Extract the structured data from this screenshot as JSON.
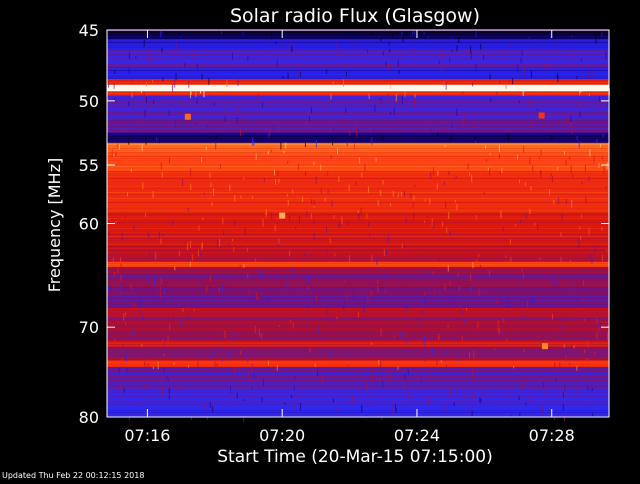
{
  "colors": {
    "background": "#000000",
    "foreground": "#ffffff",
    "colormap": [
      "#000000",
      "#1a0090",
      "#2a2cff",
      "#7a1070",
      "#d01010",
      "#ff3a10",
      "#ff8a2a",
      "#ffe0a0",
      "#ffffff"
    ]
  },
  "footer": {
    "updated": "Updated Thu Feb 22 00:12:15 2018"
  },
  "chart_data": {
    "type": "heatmap",
    "title": "Solar radio Flux (Glasgow)",
    "xlabel": "Start Time (20-Mar-15 07:15:00)",
    "ylabel": "Frequency [MHz]",
    "x_ticks": [
      {
        "label": "07:16",
        "minutes": 1
      },
      {
        "label": "07:20",
        "minutes": 5
      },
      {
        "label": "07:24",
        "minutes": 9
      },
      {
        "label": "07:28",
        "minutes": 13
      }
    ],
    "xlim_minutes": [
      -0.2,
      14.7
    ],
    "y_scale": "log",
    "ylim": [
      45,
      80
    ],
    "y_ticks": [
      45,
      50,
      55,
      60,
      70,
      80
    ],
    "grid": false,
    "frequency_bands": [
      {
        "from": 45,
        "to": 45.6,
        "level": 0.05
      },
      {
        "from": 45.6,
        "to": 46.3,
        "level": 0.2
      },
      {
        "from": 46.3,
        "to": 47.6,
        "level": 0.3
      },
      {
        "from": 47.6,
        "to": 48.4,
        "level": 0.22
      },
      {
        "from": 48.4,
        "to": 48.8,
        "level": 0.55
      },
      {
        "from": 48.8,
        "to": 49.3,
        "level": 0.98
      },
      {
        "from": 49.3,
        "to": 49.6,
        "level": 0.6
      },
      {
        "from": 49.6,
        "to": 51.5,
        "level": 0.3
      },
      {
        "from": 51.5,
        "to": 52.4,
        "level": 0.35
      },
      {
        "from": 52.4,
        "to": 53.2,
        "level": 0.1
      },
      {
        "from": 53.2,
        "to": 54.0,
        "level": 0.7
      },
      {
        "from": 54.0,
        "to": 55.5,
        "level": 0.65
      },
      {
        "from": 55.5,
        "to": 59.0,
        "level": 0.58
      },
      {
        "from": 59.0,
        "to": 62.0,
        "level": 0.52
      },
      {
        "from": 62.0,
        "to": 63.5,
        "level": 0.48
      },
      {
        "from": 63.5,
        "to": 64.0,
        "level": 0.62
      },
      {
        "from": 64.0,
        "to": 66.0,
        "level": 0.4
      },
      {
        "from": 66.0,
        "to": 68.0,
        "level": 0.36
      },
      {
        "from": 68.0,
        "to": 69.0,
        "level": 0.48
      },
      {
        "from": 69.0,
        "to": 71.5,
        "level": 0.42
      },
      {
        "from": 71.5,
        "to": 72.0,
        "level": 0.55
      },
      {
        "from": 72.0,
        "to": 73.5,
        "level": 0.42
      },
      {
        "from": 73.5,
        "to": 74.3,
        "level": 0.6
      },
      {
        "from": 74.3,
        "to": 76.5,
        "level": 0.33
      },
      {
        "from": 76.5,
        "to": 78.5,
        "level": 0.28
      },
      {
        "from": 78.5,
        "to": 80,
        "level": 0.24
      }
    ],
    "bright_spots": [
      {
        "minutes": 5.0,
        "freq": 59.3,
        "level": 0.8
      },
      {
        "minutes": 2.2,
        "freq": 51.2,
        "level": 0.7
      },
      {
        "minutes": 12.7,
        "freq": 51.1,
        "level": 0.6
      },
      {
        "minutes": 12.8,
        "freq": 72.0,
        "level": 0.75
      }
    ]
  }
}
